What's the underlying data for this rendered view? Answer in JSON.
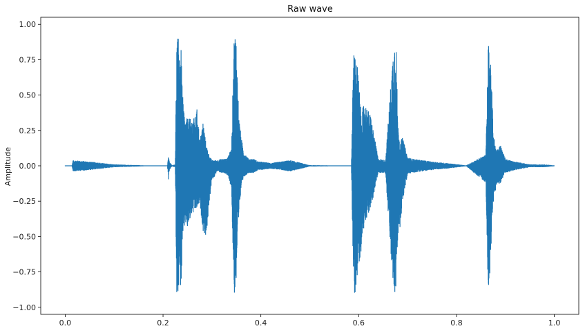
{
  "chart_data": {
    "type": "line",
    "title": "Raw wave",
    "xlabel": "",
    "ylabel": "Amplitude",
    "xlim": [
      -0.05,
      1.05
    ],
    "ylim": [
      -1.05,
      1.05
    ],
    "xticks": [
      {
        "value": 0.0,
        "label": "0.0"
      },
      {
        "value": 0.2,
        "label": "0.2"
      },
      {
        "value": 0.4,
        "label": "0.4"
      },
      {
        "value": 0.6,
        "label": "0.6"
      },
      {
        "value": 0.8,
        "label": "0.8"
      },
      {
        "value": 1.0,
        "label": "1.0"
      }
    ],
    "yticks": [
      {
        "value": 1.0,
        "label": "1.00"
      },
      {
        "value": 0.75,
        "label": "0.75"
      },
      {
        "value": 0.5,
        "label": "0.50"
      },
      {
        "value": 0.25,
        "label": "0.25"
      },
      {
        "value": 0.0,
        "label": "0.00"
      },
      {
        "value": -0.25,
        "label": "−0.25"
      },
      {
        "value": -0.5,
        "label": "−0.50"
      },
      {
        "value": -0.75,
        "label": "−0.75"
      },
      {
        "value": -1.0,
        "label": "−1.00"
      }
    ],
    "grid": false,
    "legend": "none",
    "series": [
      {
        "color": "#1f77b4",
        "envelope": {
          "x": [
            0.0,
            0.014,
            0.016,
            0.05,
            0.1,
            0.15,
            0.17,
            0.18,
            0.19,
            0.2,
            0.209,
            0.211,
            0.213,
            0.218,
            0.225,
            0.228,
            0.231,
            0.234,
            0.237,
            0.24,
            0.245,
            0.25,
            0.258,
            0.265,
            0.27,
            0.275,
            0.282,
            0.288,
            0.295,
            0.3,
            0.305,
            0.31,
            0.32,
            0.33,
            0.34,
            0.345,
            0.349,
            0.352,
            0.355,
            0.36,
            0.365,
            0.375,
            0.385,
            0.395,
            0.4,
            0.42,
            0.44,
            0.46,
            0.5,
            0.55,
            0.585,
            0.59,
            0.593,
            0.598,
            0.605,
            0.612,
            0.625,
            0.64,
            0.655,
            0.67,
            0.676,
            0.68,
            0.684,
            0.69,
            0.7,
            0.71,
            0.73,
            0.75,
            0.78,
            0.82,
            0.86,
            0.865,
            0.868,
            0.872,
            0.876,
            0.882,
            0.89,
            0.9,
            0.92,
            0.95,
            0.98,
            1.0
          ],
          "top": [
            0.003,
            0.003,
            0.04,
            0.03,
            0.01,
            0.005,
            0.002,
            0.002,
            0.002,
            0.002,
            0.002,
            0.07,
            0.03,
            0.004,
            0.01,
            0.89,
            0.91,
            0.85,
            0.82,
            0.5,
            0.32,
            0.34,
            0.33,
            0.34,
            0.41,
            0.17,
            0.32,
            0.15,
            0.07,
            0.04,
            0.04,
            0.04,
            0.05,
            0.05,
            0.12,
            0.9,
            0.96,
            0.65,
            0.35,
            0.2,
            0.1,
            0.05,
            0.05,
            0.03,
            0.03,
            0.02,
            0.03,
            0.04,
            0.005,
            0.003,
            0.003,
            0.88,
            0.77,
            0.7,
            0.37,
            0.45,
            0.35,
            0.05,
            0.04,
            0.8,
            0.96,
            0.3,
            0.17,
            0.2,
            0.06,
            0.05,
            0.04,
            0.03,
            0.02,
            0.003,
            0.08,
            0.86,
            0.85,
            0.58,
            0.21,
            0.11,
            0.15,
            0.05,
            0.03,
            0.01,
            0.01,
            0.003
          ],
          "bot": [
            -0.003,
            -0.003,
            -0.04,
            -0.03,
            -0.01,
            -0.005,
            -0.002,
            -0.002,
            -0.002,
            -0.002,
            -0.002,
            -0.1,
            -0.03,
            -0.004,
            -0.01,
            -0.92,
            -0.88,
            -0.82,
            -0.88,
            -0.55,
            -0.4,
            -0.45,
            -0.35,
            -0.33,
            -0.3,
            -0.27,
            -0.46,
            -0.51,
            -0.25,
            -0.1,
            -0.08,
            -0.04,
            -0.05,
            -0.06,
            -0.15,
            -0.92,
            -0.88,
            -0.6,
            -0.4,
            -0.13,
            -0.08,
            -0.05,
            -0.05,
            -0.03,
            -0.03,
            -0.02,
            -0.03,
            -0.04,
            -0.005,
            -0.003,
            -0.003,
            -0.96,
            -0.9,
            -0.75,
            -0.6,
            -0.4,
            -0.3,
            -0.05,
            -0.05,
            -0.86,
            -0.94,
            -0.5,
            -0.45,
            -0.25,
            -0.06,
            -0.05,
            -0.04,
            -0.03,
            -0.02,
            -0.003,
            -0.12,
            -0.92,
            -0.85,
            -0.45,
            -0.23,
            -0.14,
            -0.12,
            -0.05,
            -0.03,
            -0.01,
            -0.01,
            -0.003
          ]
        }
      }
    ]
  }
}
